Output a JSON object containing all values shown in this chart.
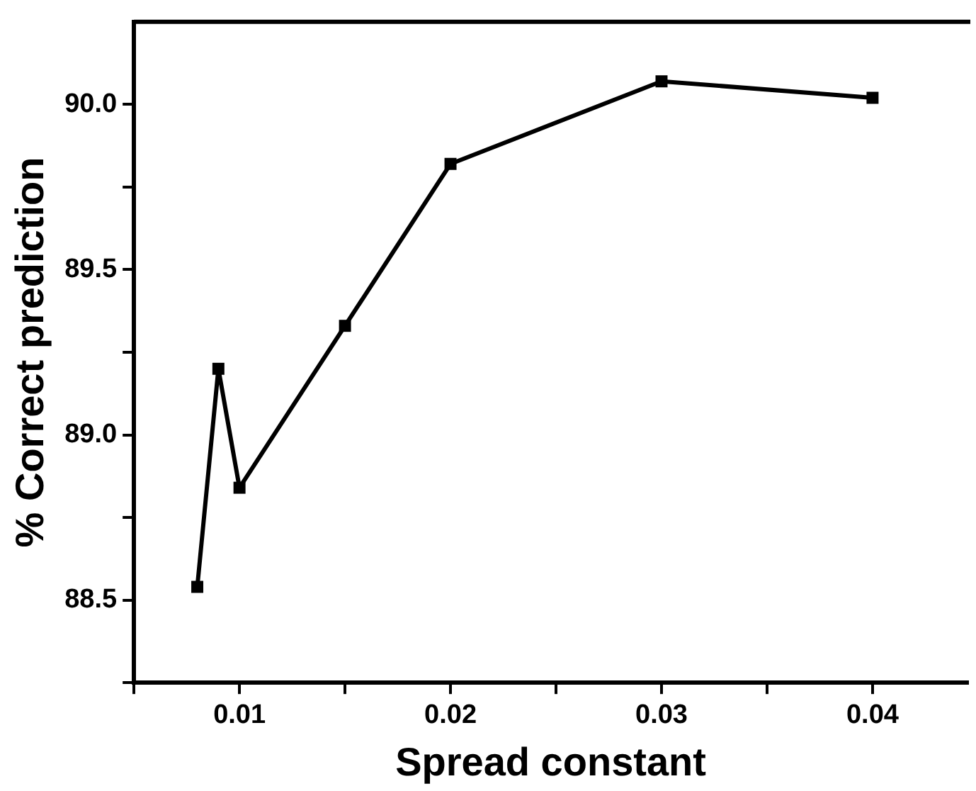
{
  "chart_data": {
    "type": "line",
    "xlabel": "Spread constant",
    "ylabel": "% Correct prediction",
    "x": [
      0.008,
      0.009,
      0.01,
      0.015,
      0.02,
      0.03,
      0.04
    ],
    "series": [
      {
        "color": "#000000",
        "values": [
          88.54,
          89.2,
          88.84,
          89.33,
          89.82,
          90.07,
          90.02
        ]
      }
    ],
    "xlim": [
      0.005,
      0.0445
    ],
    "xticks": [
      {
        "value": 0.005,
        "label": null
      },
      {
        "value": 0.01,
        "label": "0.01"
      },
      {
        "value": 0.015,
        "label": null
      },
      {
        "value": 0.02,
        "label": "0.02"
      },
      {
        "value": 0.025,
        "label": null
      },
      {
        "value": 0.03,
        "label": "0.03"
      },
      {
        "value": 0.035,
        "label": null
      },
      {
        "value": 0.04,
        "label": "0.04"
      }
    ],
    "ylim": [
      88.25,
      90.25
    ],
    "yticks": [
      {
        "value": 88.25,
        "label": null
      },
      {
        "value": 88.5,
        "label": "88.5"
      },
      {
        "value": 88.75,
        "label": null
      },
      {
        "value": 89.0,
        "label": "89.0"
      },
      {
        "value": 89.25,
        "label": null
      },
      {
        "value": 89.5,
        "label": "89.5"
      },
      {
        "value": 89.75,
        "label": null
      },
      {
        "value": 90.0,
        "label": "90.0"
      }
    ],
    "grid": false,
    "legend": false,
    "marker": "square",
    "line_style": "solid"
  }
}
